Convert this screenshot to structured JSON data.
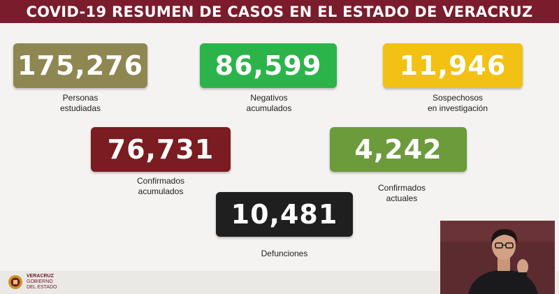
{
  "header": {
    "title": "COVID-19 RESUMEN DE CASOS EN EL ESTADO DE VERACRUZ"
  },
  "stats": {
    "personas": {
      "value": "175,276",
      "label1": "Personas",
      "label2": "estudiadas"
    },
    "negativos": {
      "value": "86,599",
      "label1": "Negativos",
      "label2": "acumulados"
    },
    "sospechosos": {
      "value": "11,946",
      "label1": "Sospechosos",
      "label2": "en investigación"
    },
    "confirmados": {
      "value": "76,731",
      "label1": "Confirmados",
      "label2": "acumulados"
    },
    "actuales": {
      "value": "4,242",
      "label1": "Confirmados",
      "label2": "actuales"
    },
    "defunciones": {
      "value": "10,481",
      "label1": "Defunciones"
    }
  },
  "colors": {
    "header": "#7a1c2c",
    "personas": "#8e8751",
    "negativos": "#2cb44b",
    "sospechosos": "#f2c113",
    "confirmados": "#7a1c20",
    "actuales": "#6c9b3c",
    "defunciones": "#1f1f1f"
  },
  "footer": {
    "logo_line1": "VERACRUZ",
    "logo_line2": "GOBIERNO",
    "logo_line3": "DEL ESTADO"
  }
}
